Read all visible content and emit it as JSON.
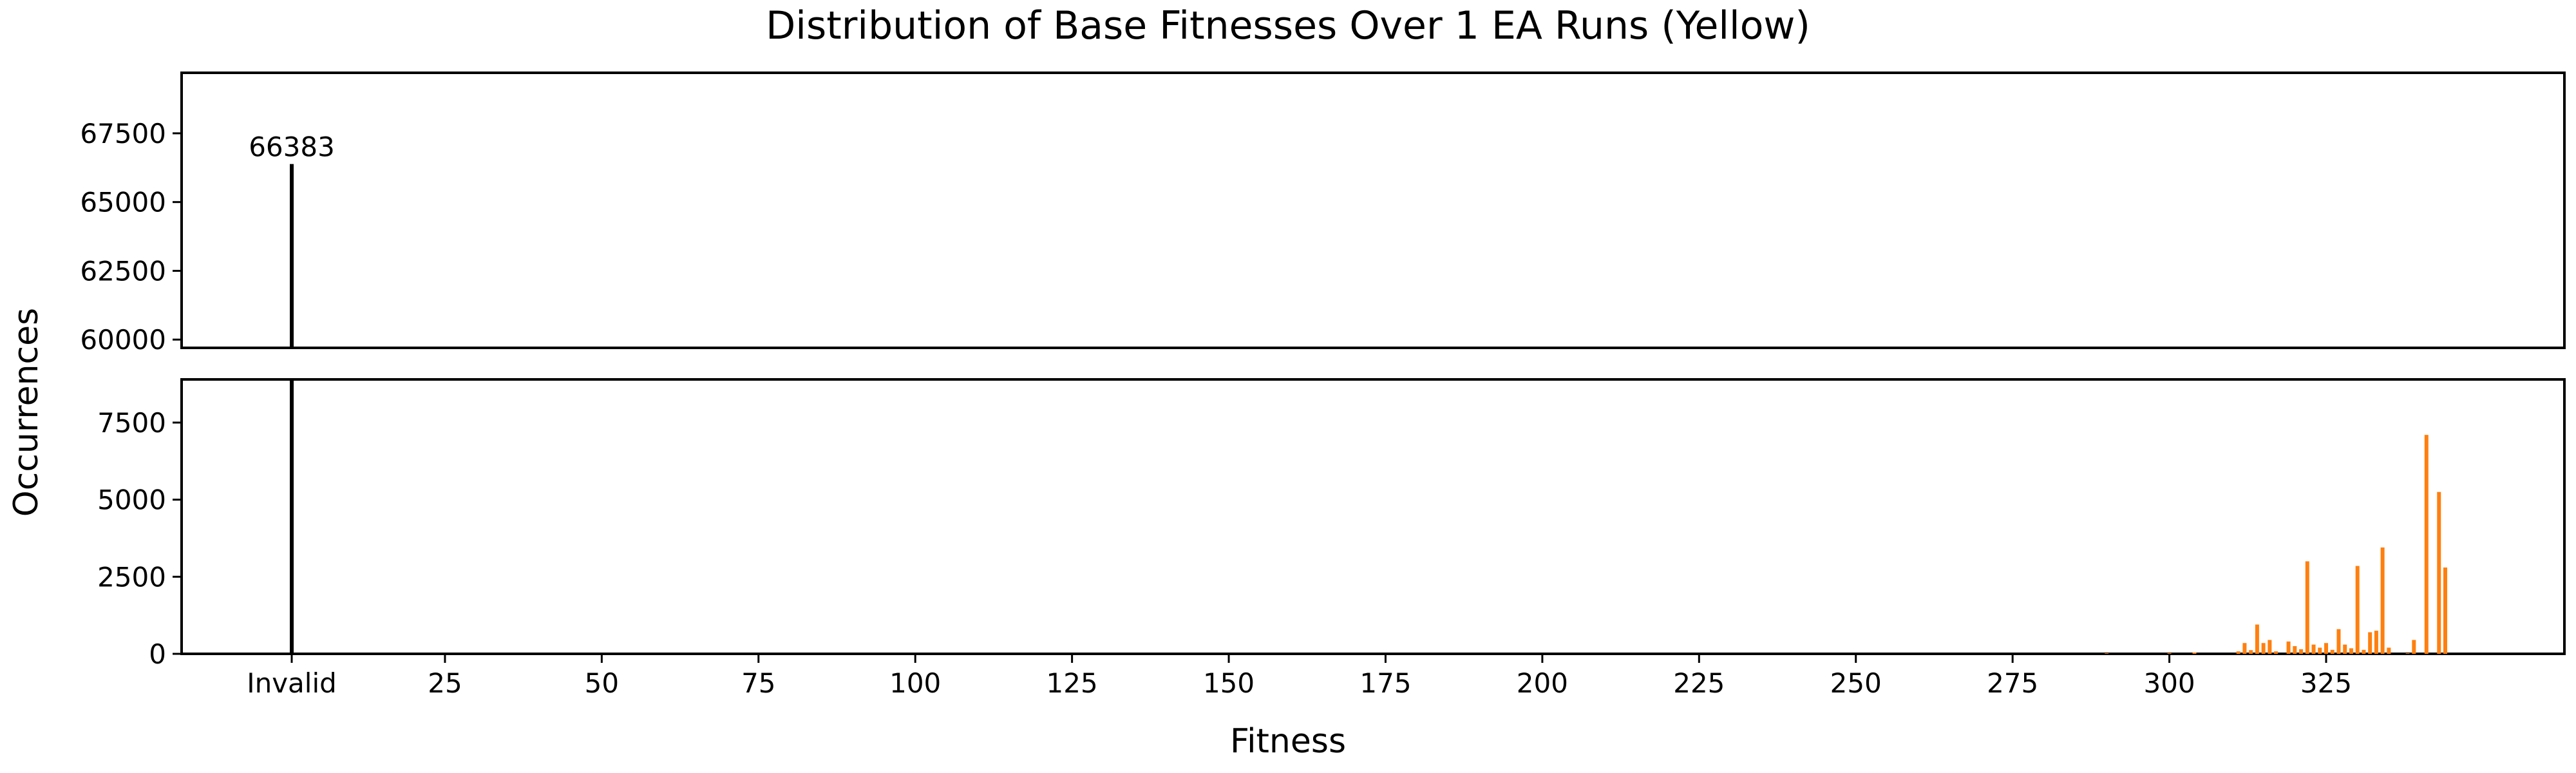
{
  "chart_data": {
    "type": "bar",
    "title": "Distribution of Base Fitnesses Over 1 EA Runs (Yellow)",
    "xlabel": "Fitness",
    "ylabel": "Occurrences",
    "broken_y_axis": true,
    "grid": false,
    "invalid_label": "Invalid",
    "invalid_color": "#000000",
    "bar_color": "#ff7f0e",
    "x_ticks": [
      25,
      50,
      75,
      100,
      125,
      150,
      175,
      200,
      225,
      250,
      275,
      300,
      325
    ],
    "xlim": [
      -17,
      363
    ],
    "upper_panel": {
      "ylim": [
        59700,
        69700
      ],
      "yticks": [
        60000,
        62500,
        65000,
        67500
      ]
    },
    "lower_panel": {
      "ylim": [
        0,
        8900
      ],
      "yticks": [
        0,
        2500,
        5000,
        7500
      ]
    },
    "invalid": {
      "value": 66383,
      "label": "66383"
    },
    "series": [
      {
        "x": [
          290,
          300,
          304,
          311,
          312,
          313,
          314,
          315,
          316,
          317,
          319,
          320,
          321,
          322,
          323,
          324,
          325,
          326,
          327,
          328,
          329,
          330,
          331,
          332,
          333,
          334,
          335,
          338,
          339,
          341,
          343,
          344
        ],
        "values": [
          20,
          25,
          40,
          80,
          350,
          120,
          950,
          350,
          450,
          80,
          400,
          250,
          150,
          3000,
          300,
          200,
          350,
          130,
          800,
          300,
          180,
          2850,
          130,
          700,
          750,
          3450,
          200,
          20,
          450,
          7100,
          5250,
          2800
        ]
      }
    ]
  }
}
